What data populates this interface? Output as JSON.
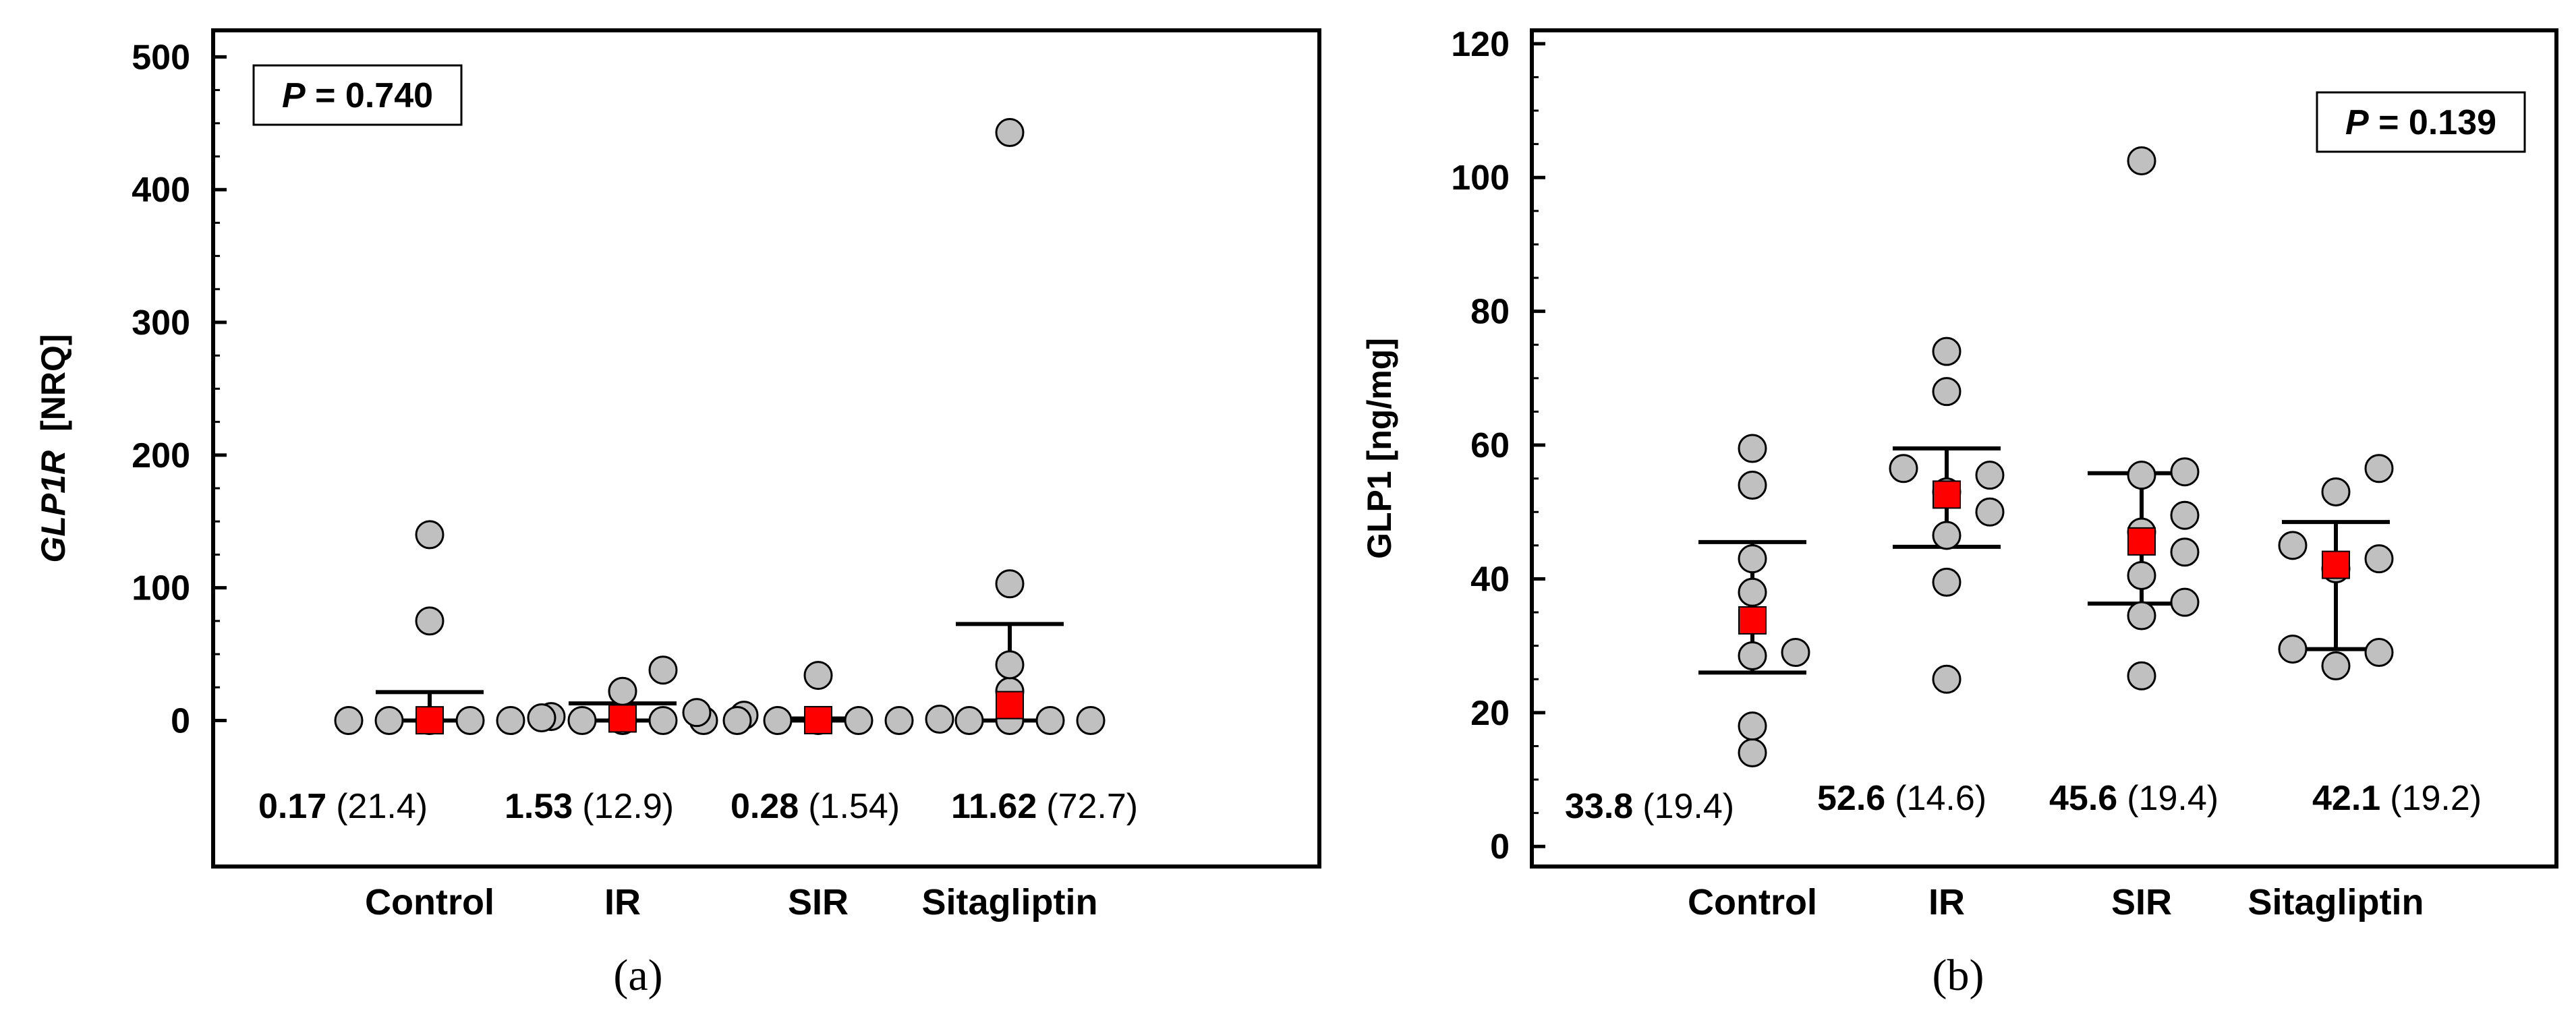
{
  "chart_data": [
    {
      "type": "scatter",
      "panel_label": "(a)",
      "ylabel_italic": "GLP1R",
      "ylabel_unit": "[NRQ]",
      "ylim": [
        -110,
        520
      ],
      "yticks": [
        0,
        100,
        200,
        300,
        400,
        500
      ],
      "p_value": {
        "prefix": "P",
        "text": " = 0.740"
      },
      "legend_position": "top-left",
      "categories": [
        "Control",
        "IR",
        "SIR",
        "Sitagliptin"
      ],
      "groups": [
        {
          "name": "Control",
          "points": [
            0,
            0,
            0,
            0,
            0,
            3,
            75,
            140
          ],
          "summary": 0.17,
          "upper": 21.4,
          "lower": 0,
          "stat_main": "0.17",
          "stat_paren": "(21.4)"
        },
        {
          "name": "IR",
          "points": [
            0,
            0,
            0,
            0,
            2,
            4,
            22,
            38
          ],
          "summary": 1.53,
          "upper": 12.9,
          "lower": 0,
          "stat_main": "1.53",
          "stat_paren": "(12.9)"
        },
        {
          "name": "SIR",
          "points": [
            0,
            0,
            0,
            0,
            0,
            1,
            6,
            34
          ],
          "summary": 0.28,
          "upper": 1.54,
          "lower": 0,
          "stat_main": "0.28",
          "stat_paren": "(1.54)"
        },
        {
          "name": "Sitagliptin",
          "points": [
            0,
            0,
            0,
            0,
            22,
            42,
            103,
            443
          ],
          "summary": 11.62,
          "upper": 72.7,
          "lower": 0,
          "stat_main": "11.62",
          "stat_paren": "(72.7)"
        }
      ]
    },
    {
      "type": "scatter",
      "panel_label": "(b)",
      "ylabel_italic": "",
      "ylabel_unit": "GLP1 [ng/mg]",
      "ylim": [
        -3,
        122
      ],
      "yticks": [
        0,
        20,
        40,
        60,
        80,
        100,
        120
      ],
      "p_value": {
        "prefix": "P",
        "text": " = 0.139"
      },
      "legend_position": "top-right",
      "categories": [
        "Control",
        "IR",
        "SIR",
        "Sitagliptin"
      ],
      "groups": [
        {
          "name": "Control",
          "points": [
            14,
            18,
            28.5,
            29,
            38,
            43,
            54,
            59.5
          ],
          "summary": 33.8,
          "upper": 45.5,
          "lower": 26,
          "stat_main": "33.8",
          "stat_paren": "(19.4)"
        },
        {
          "name": "IR",
          "points": [
            25,
            39.5,
            46.5,
            50,
            53,
            55.5,
            56.5,
            68,
            74
          ],
          "summary": 52.6,
          "upper": 59.5,
          "lower": 44.8,
          "stat_main": "52.6",
          "stat_paren": "(14.6)"
        },
        {
          "name": "SIR",
          "points": [
            25.5,
            34.5,
            36.5,
            40.5,
            44,
            47,
            49.5,
            55.5,
            56,
            102.5
          ],
          "summary": 45.6,
          "upper": 55.8,
          "lower": 36.3,
          "stat_main": "45.6",
          "stat_paren": "(19.4)"
        },
        {
          "name": "Sitagliptin",
          "points": [
            27,
            29,
            29.5,
            41.5,
            43,
            45,
            53,
            56.5
          ],
          "summary": 42.1,
          "upper": 48.5,
          "lower": 29.5,
          "stat_main": "42.1",
          "stat_paren": "(19.2)"
        }
      ]
    }
  ]
}
